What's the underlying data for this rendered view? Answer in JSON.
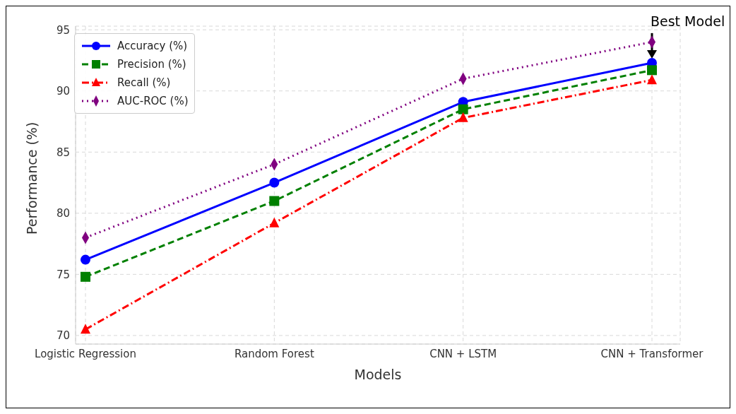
{
  "chart_data": {
    "type": "line",
    "xlabel": "Models",
    "ylabel": "Performance (%)",
    "categories": [
      "Logistic Regression",
      "Random Forest",
      "CNN + LSTM",
      "CNN + Transformer"
    ],
    "series": [
      {
        "name": "Accuracy (%)",
        "color": "#0000ff",
        "values": [
          76.2,
          82.5,
          89.1,
          92.3
        ],
        "marker": "circle",
        "line_style": "solid"
      },
      {
        "name": "Precision (%)",
        "color": "#008000",
        "values": [
          74.8,
          81.0,
          88.5,
          91.7
        ],
        "marker": "square",
        "line_style": "dashed"
      },
      {
        "name": "Recall (%)",
        "color": "#ff0000",
        "values": [
          70.5,
          79.2,
          87.8,
          90.9
        ],
        "marker": "triangle",
        "line_style": "dashdot"
      },
      {
        "name": "AUC-ROC (%)",
        "color": "#800080",
        "values": [
          78.0,
          84.0,
          91.0,
          94.0
        ],
        "marker": "diamond",
        "line_style": "dotted"
      }
    ],
    "ylim": [
      69.3,
      95.3
    ],
    "yticks": [
      70,
      75,
      80,
      85,
      90,
      95
    ],
    "grid": true,
    "legend": "top left",
    "annotations": [
      {
        "text": "Best Model",
        "x": "CNN + Transformer",
        "y": 92.3
      }
    ]
  }
}
